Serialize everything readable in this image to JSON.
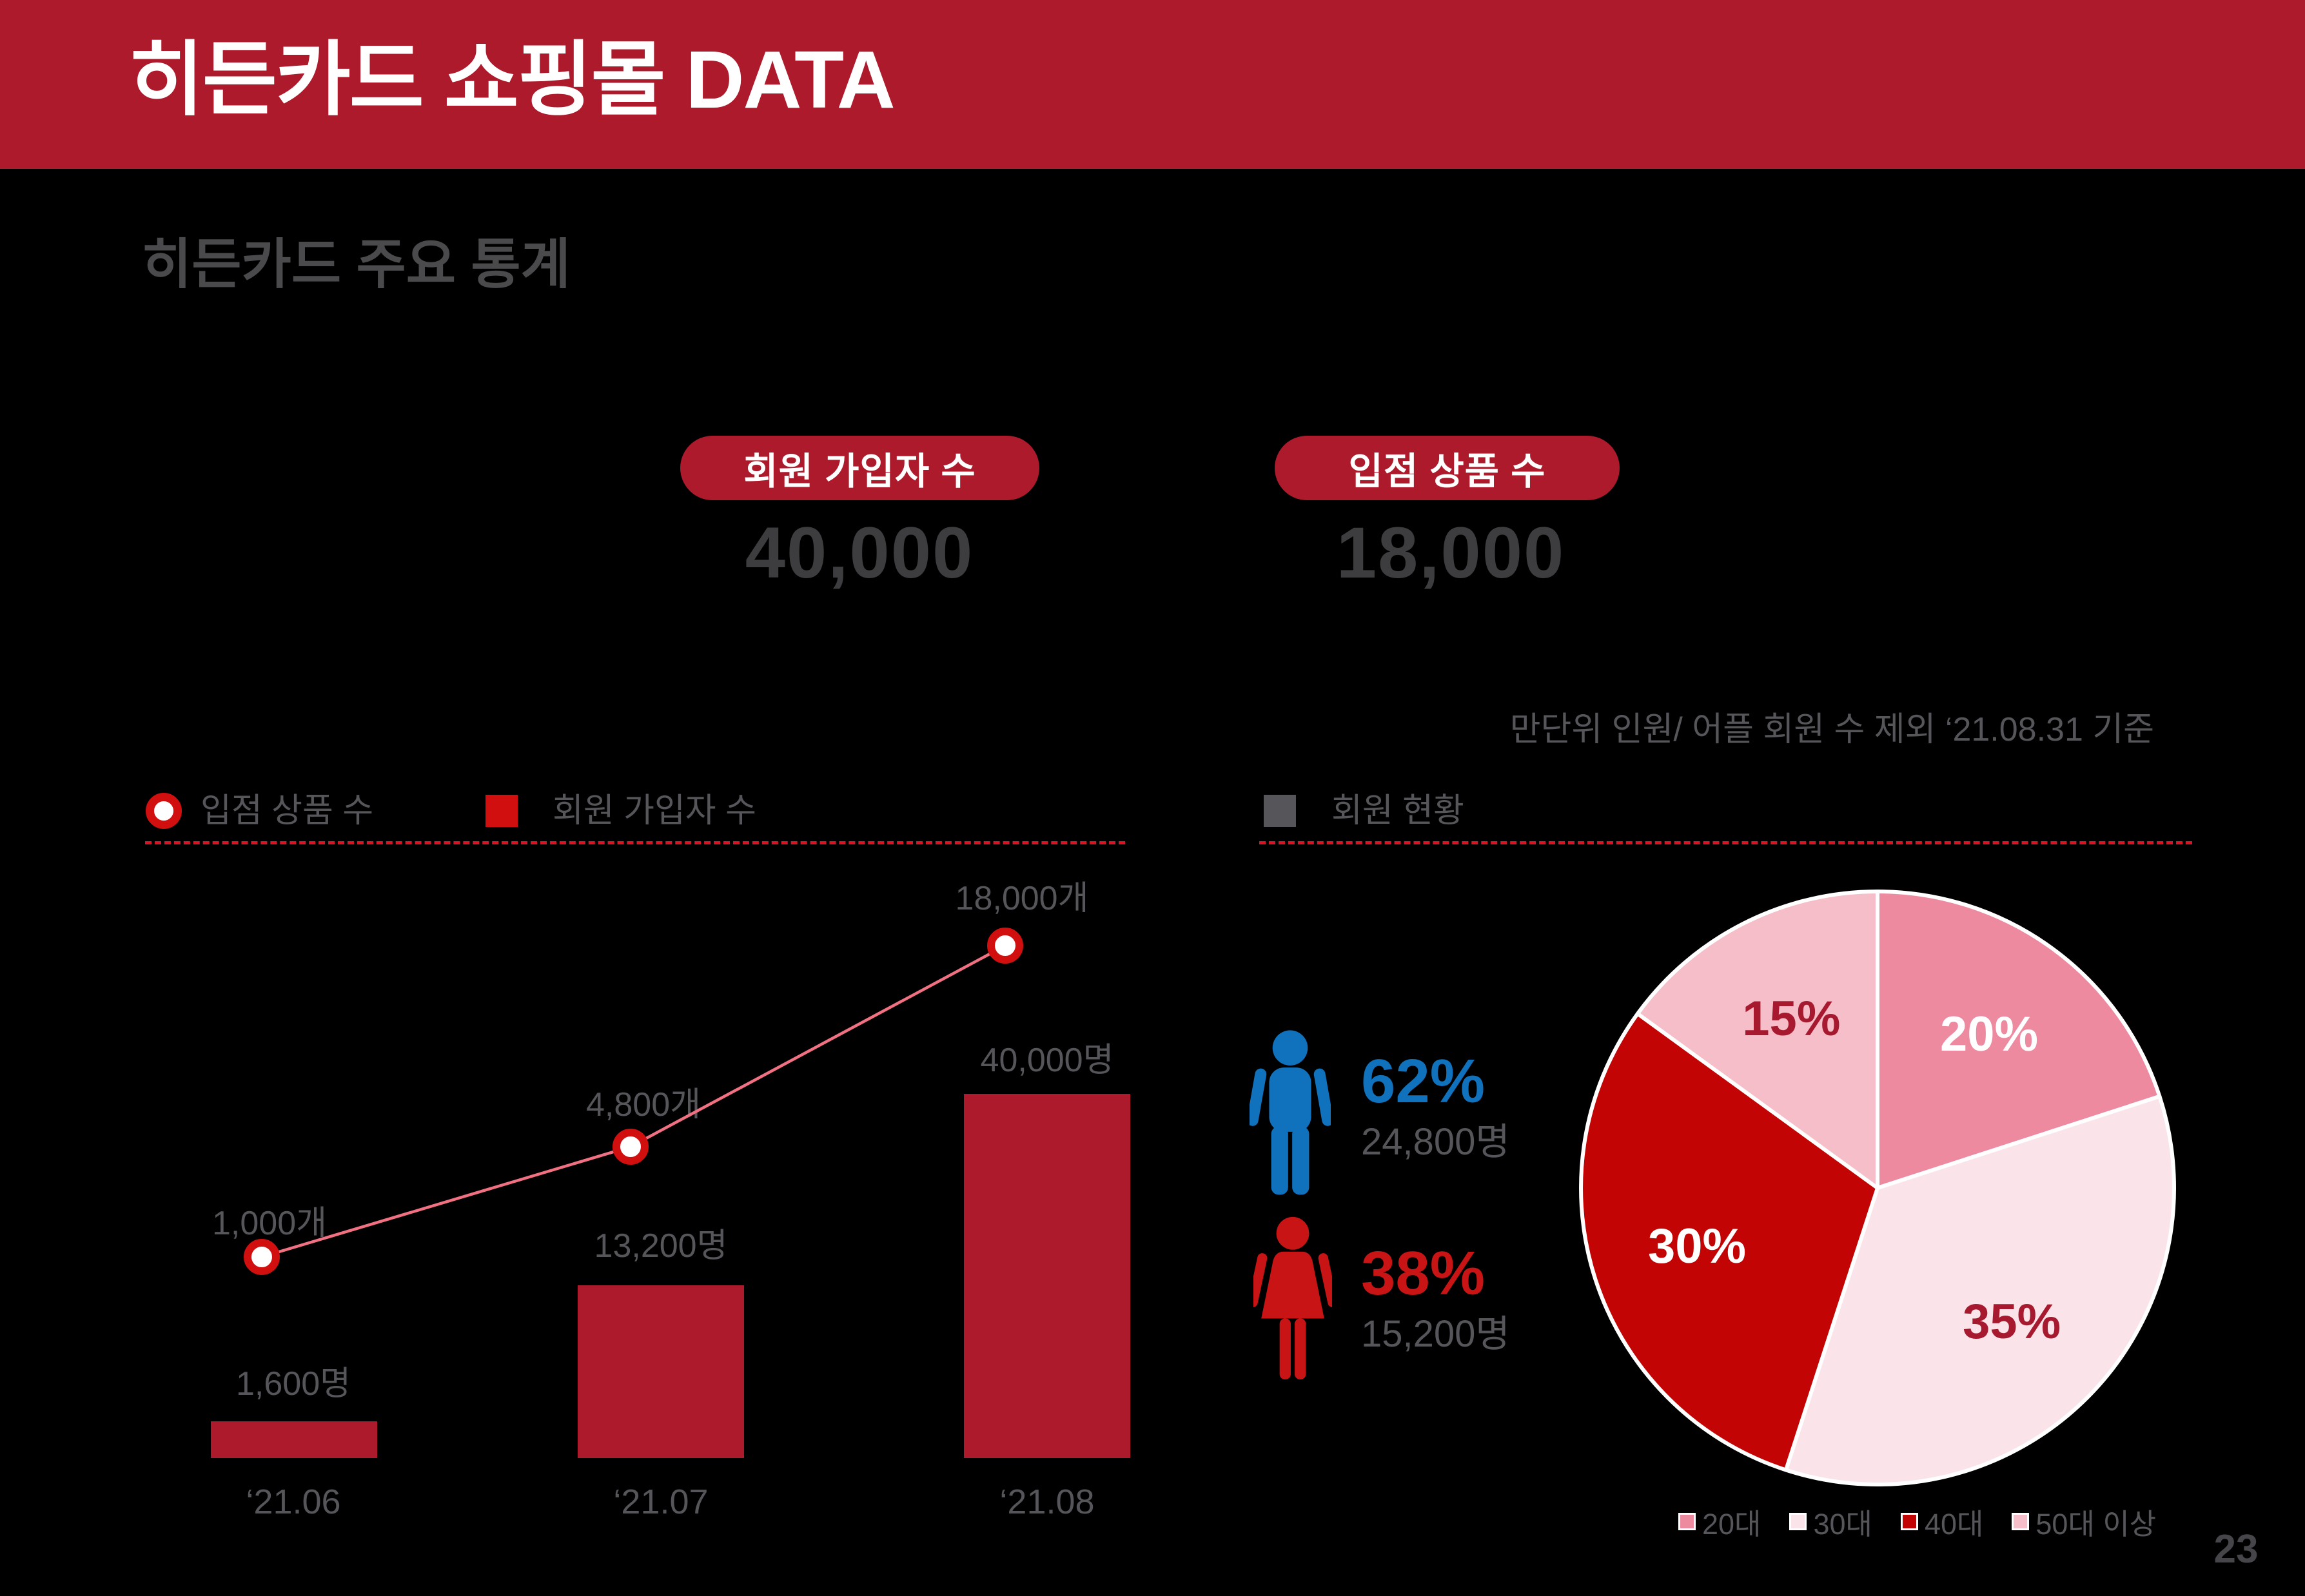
{
  "header": {
    "title": "히든카드 쇼핑몰 DATA"
  },
  "subtitle": "히든카드 주요 통계",
  "kpis": [
    {
      "badge": "회원 가입자 수",
      "value": "40,000"
    },
    {
      "badge": "입점 상품 수",
      "value": "18,000"
    }
  ],
  "note": "만단위 인원/ 어플 회원 수 제외 ‘21.08.31 기준",
  "combo_legend": [
    {
      "label": "입점 상품 수",
      "marker": "ring-dot"
    },
    {
      "label": "회원 가입자 수",
      "marker": "square"
    }
  ],
  "pie_header": {
    "label": "회원 현황",
    "marker": "square"
  },
  "gender": {
    "male": {
      "percent": "62%",
      "count": "24,800명"
    },
    "female": {
      "percent": "38%",
      "count": "15,200명"
    }
  },
  "page_number": "23",
  "colors": {
    "accent_red": "#ad1a2b",
    "marker_red": "#d20f0f",
    "line_pink": "#f17183",
    "male_blue": "#1071bc",
    "female_red": "#c81414",
    "divider_red": "#d81424",
    "text_gray": "#55555a",
    "number_gray": "#3d3d40",
    "subtitle_gray": "#4a4a4d",
    "page_gray": "#46464a",
    "pie_label_red": "#a6192e",
    "white": "#ffffff"
  },
  "chart_data": [
    {
      "type": "bar",
      "subtype": "combo-bar-line",
      "categories": [
        "‘21.06",
        "‘21.07",
        "‘21.08"
      ],
      "series": [
        {
          "name": "회원 가입자 수",
          "type": "bar",
          "values": [
            1600,
            13200,
            40000
          ],
          "labels": [
            "1,600명",
            "13,200명",
            "40,000명"
          ],
          "color": "#ad1a2b"
        },
        {
          "name": "입점 상품 수",
          "type": "line",
          "values": [
            1000,
            4800,
            18000
          ],
          "labels": [
            "1,000개",
            "4,800개",
            "18,000개"
          ],
          "color": "#f17183",
          "marker_color": "#d20f0f",
          "marker_fill": "#ffffff"
        }
      ],
      "legend_position": "top-left",
      "grid": false,
      "axis_lines": false
    },
    {
      "type": "pie",
      "title": "회원 현황",
      "slices": [
        {
          "label": "20대",
          "value": 20,
          "color": "#ed8aa0",
          "text_color": "#ffffff"
        },
        {
          "label": "30대",
          "value": 35,
          "color": "#fbe4e9",
          "text_color": "#a6192e"
        },
        {
          "label": "40대",
          "value": 30,
          "color": "#c20404",
          "text_color": "#ffffff"
        },
        {
          "label": "50대 이상",
          "value": 15,
          "color": "#f5bec8",
          "text_color": "#a6192e"
        }
      ],
      "start_angle_deg": 0,
      "direction": "clockwise",
      "legend_position": "bottom"
    }
  ]
}
